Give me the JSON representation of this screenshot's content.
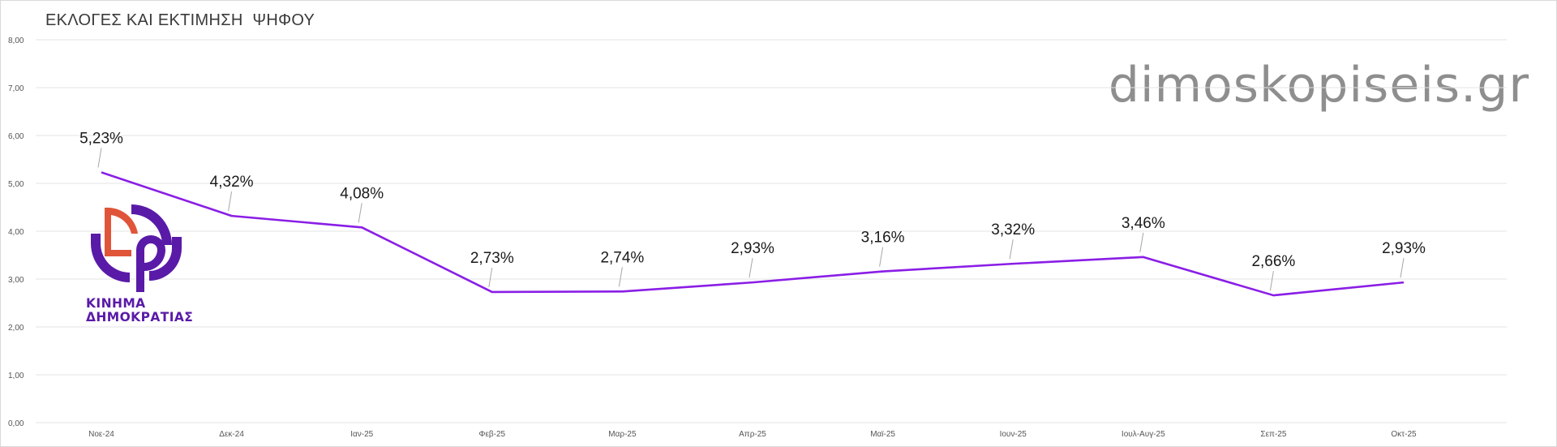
{
  "header": {
    "title": "ΕΚΛΟΓΕΣ ΚΑΙ ΕΚΤΙΜΗΣΗ  ΨΗΦΟΥ"
  },
  "watermark": {
    "text": "dimoskopiseis.gr"
  },
  "logo": {
    "icon": "kinima-dimokratias-logo",
    "line1": "ΚΙΝΗΜΑ",
    "line2": "ΔΗΜΟΚΡΑΤΙΑΣ",
    "colors": {
      "primary": "#5a1aa8",
      "accent": "#e0553a"
    }
  },
  "colors": {
    "line": "#8a1ee6",
    "grid": "#e3e3e3",
    "label_text": "#1a1a1a",
    "tick_text": "#555555",
    "leader": "#a6a6a6"
  },
  "chart_data": {
    "type": "line",
    "title": "ΕΚΛΟΓΕΣ ΚΑΙ ΕΚΤΙΜΗΣΗ  ΨΗΦΟΥ",
    "xlabel": "",
    "ylabel": "",
    "categories": [
      "Νοε-24",
      "Δεκ-24",
      "Ιαν-25",
      "Φεβ-25",
      "Μαρ-25",
      "Απρ-25",
      "Μαϊ-25",
      "Ιουν-25",
      "Ιουλ-Αυγ-25",
      "Σεπ-25",
      "Οκτ-25"
    ],
    "series": [
      {
        "values": [
          5.23,
          4.32,
          4.08,
          2.73,
          2.74,
          2.93,
          3.16,
          3.32,
          3.46,
          2.66,
          2.93
        ],
        "labels": [
          "5,23%",
          "4,32%",
          "4,08%",
          "2,73%",
          "2,74%",
          "2,93%",
          "3,16%",
          "3,32%",
          "3,46%",
          "2,66%",
          "2,93%"
        ]
      }
    ],
    "ylim": [
      0,
      8
    ],
    "yticks": [
      "0,00",
      "1,00",
      "2,00",
      "3,00",
      "4,00",
      "5,00",
      "6,00",
      "7,00",
      "8,00"
    ],
    "grid": true,
    "legend": "none"
  }
}
